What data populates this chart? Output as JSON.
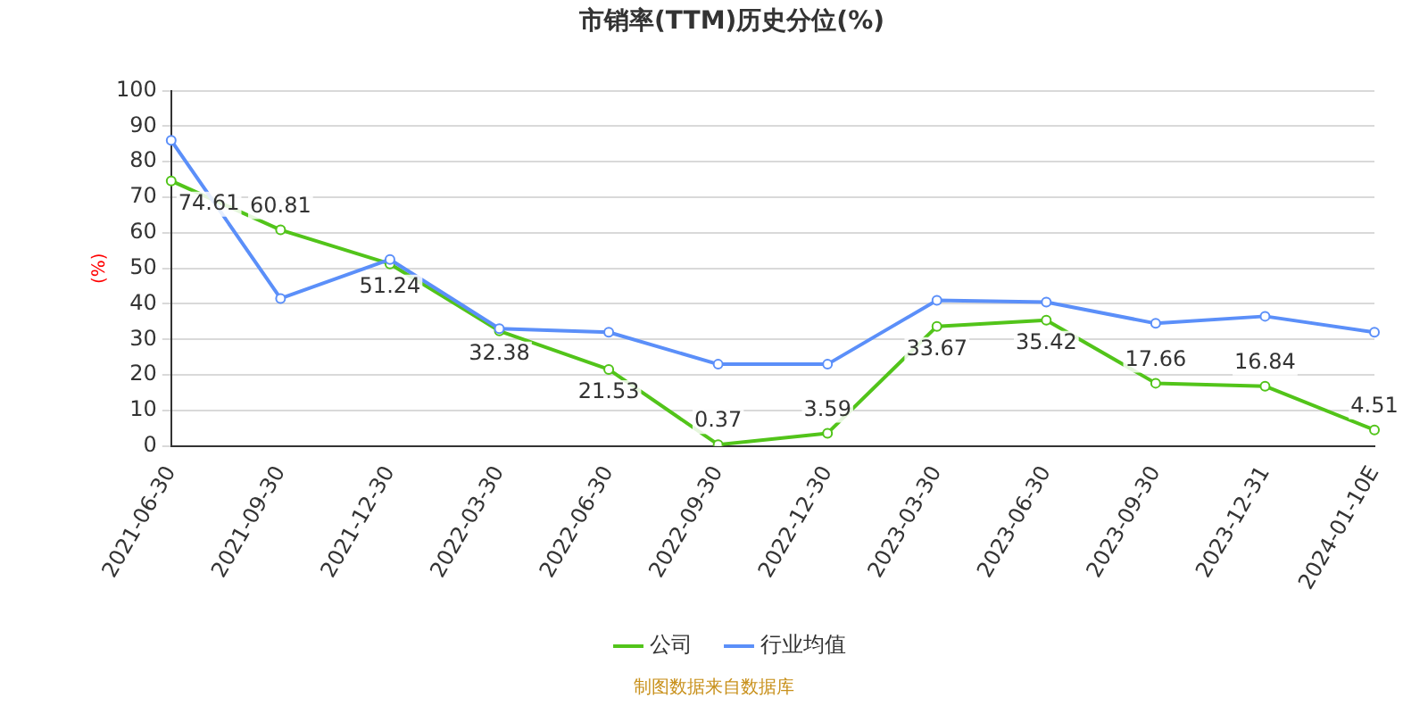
{
  "chart_data": {
    "type": "line",
    "title": "市销率(TTM)历史分位(%)",
    "ylabel": "(%)",
    "categories": [
      "2021-06-30",
      "2021-09-30",
      "2021-12-30",
      "2022-03-30",
      "2022-06-30",
      "2022-09-30",
      "2022-12-30",
      "2023-03-30",
      "2023-06-30",
      "2023-09-30",
      "2023-12-31",
      "2024-01-10E"
    ],
    "series": [
      {
        "name": "公司",
        "color": "#52c41a",
        "values": [
          74.61,
          60.81,
          51.24,
          32.38,
          21.53,
          0.37,
          3.59,
          33.67,
          35.42,
          17.66,
          16.84,
          4.51
        ],
        "value_labels": [
          "74.61",
          "60.81",
          "51.24",
          "32.38",
          "21.53",
          "0.37",
          "3.59",
          "33.67",
          "35.42",
          "17.66",
          "16.84",
          "4.51"
        ]
      },
      {
        "name": "行业均值",
        "color": "#5b8ff9",
        "values": [
          86,
          41.5,
          52.5,
          33,
          32,
          23,
          23,
          41,
          40.5,
          34.5,
          36.5,
          32
        ]
      }
    ],
    "ylim": [
      0,
      100
    ],
    "yticks": [
      0,
      10,
      20,
      30,
      40,
      50,
      60,
      70,
      80,
      90,
      100
    ],
    "grid": "y",
    "legend": "bottom",
    "marker": "circle",
    "annotations": [
      "制图数据来自数据库"
    ]
  }
}
